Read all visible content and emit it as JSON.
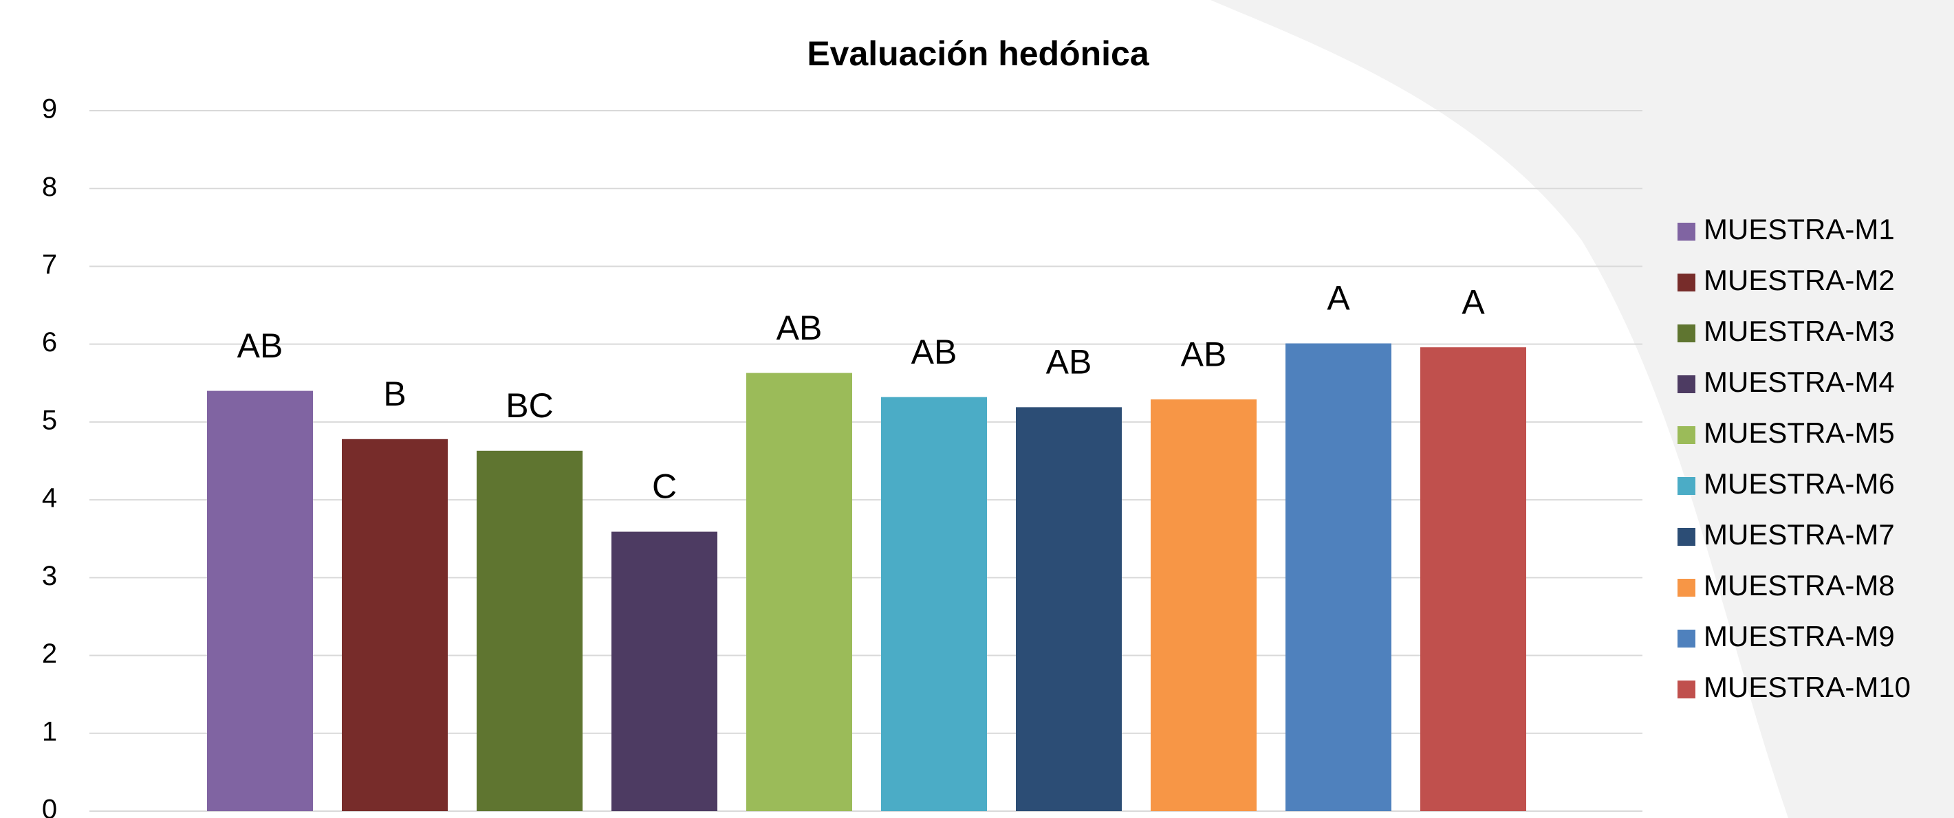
{
  "chart_data": {
    "type": "bar",
    "title": "Evaluación hedónica",
    "series": [
      {
        "name": "MUESTRA-M1",
        "color": "#8064a2",
        "values": [
          5.4
        ],
        "annotation": "AB"
      },
      {
        "name": "MUESTRA-M2",
        "color": "#772c2a",
        "values": [
          4.78
        ],
        "annotation": "B"
      },
      {
        "name": "MUESTRA-M3",
        "color": "#5f7530",
        "values": [
          4.63
        ],
        "annotation": "BC"
      },
      {
        "name": "MUESTRA-M4",
        "color": "#4d3b62",
        "values": [
          3.59
        ],
        "annotation": "C"
      },
      {
        "name": "MUESTRA-M5",
        "color": "#9bbb59",
        "values": [
          5.63
        ],
        "annotation": "AB"
      },
      {
        "name": "MUESTRA-M6",
        "color": "#4bacc6",
        "values": [
          5.32
        ],
        "annotation": "AB"
      },
      {
        "name": "MUESTRA-M7",
        "color": "#2c4d75",
        "values": [
          5.19
        ],
        "annotation": "AB"
      },
      {
        "name": "MUESTRA-M8",
        "color": "#f79646",
        "values": [
          5.29
        ],
        "annotation": "AB"
      },
      {
        "name": "MUESTRA-M9",
        "color": "#4f81bd",
        "values": [
          6.01
        ],
        "annotation": "A"
      },
      {
        "name": "MUESTRA-M10",
        "color": "#c0504d",
        "values": [
          5.96
        ],
        "annotation": "A"
      }
    ],
    "ylim": [
      0,
      9
    ],
    "yticks": [
      0,
      1,
      2,
      3,
      4,
      5,
      6,
      7,
      8,
      9
    ],
    "grid": true,
    "legend": "right"
  }
}
